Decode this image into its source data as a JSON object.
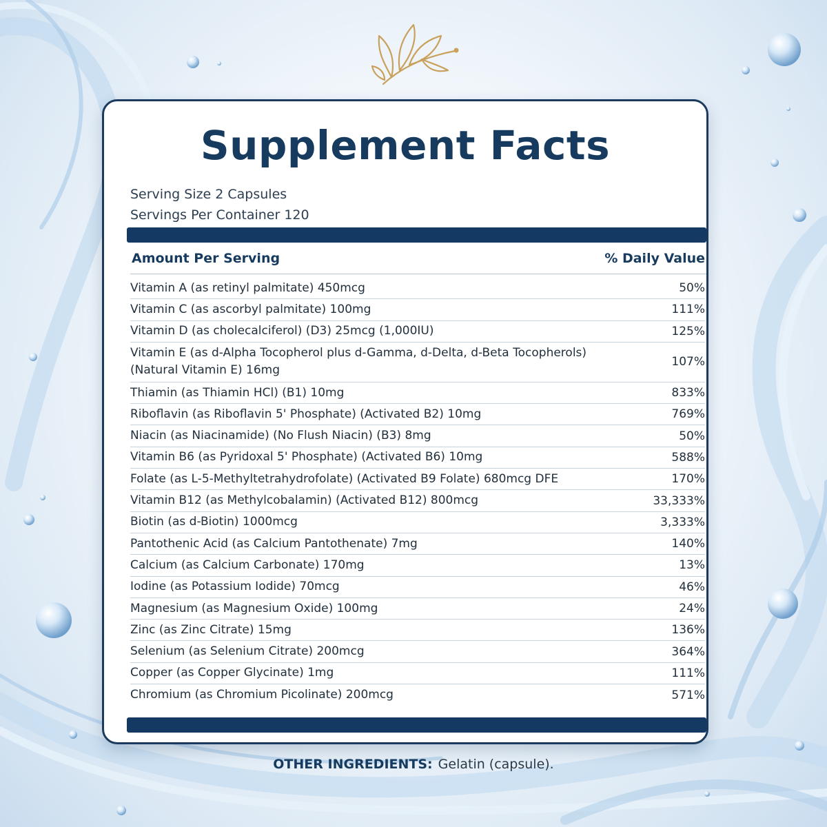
{
  "title": "Supplement Facts",
  "serving_size": "Serving Size 2 Capsules",
  "servings_per_container": "Servings Per Container 120",
  "header": {
    "amount_label": "Amount Per Serving",
    "dv_label": "% Daily Value"
  },
  "nutrients": [
    {
      "name": "Vitamin A (as retinyl palmitate) 450mcg",
      "dv": "50%"
    },
    {
      "name": "Vitamin C (as ascorbyl palmitate) 100mg",
      "dv": "111%"
    },
    {
      "name": "Vitamin D (as cholecalciferol) (D3) 25mcg (1,000IU)",
      "dv": "125%"
    },
    {
      "name": "Vitamin E (as d-Alpha Tocopherol plus d-Gamma, d-Delta, d-Beta Tocopherols) (Natural Vitamin E) 16mg",
      "dv": "107%"
    },
    {
      "name": "Thiamin (as Thiamin HCl) (B1) 10mg",
      "dv": "833%"
    },
    {
      "name": "Riboflavin (as Riboflavin 5' Phosphate) (Activated B2) 10mg",
      "dv": "769%"
    },
    {
      "name": "Niacin (as Niacinamide) (No Flush Niacin) (B3) 8mg",
      "dv": "50%"
    },
    {
      "name": "Vitamin B6 (as Pyridoxal 5' Phosphate) (Activated B6) 10mg",
      "dv": "588%"
    },
    {
      "name": "Folate (as L-5-Methyltetrahydrofolate) (Activated B9 Folate) 680mcg DFE",
      "dv": "170%"
    },
    {
      "name": "Vitamin B12 (as Methylcobalamin) (Activated B12) 800mcg",
      "dv": "33,333%"
    },
    {
      "name": "Biotin (as d-Biotin) 1000mcg",
      "dv": "3,333%"
    },
    {
      "name": "Pantothenic Acid (as Calcium Pantothenate) 7mg",
      "dv": "140%"
    },
    {
      "name": "Calcium (as Calcium Carbonate) 170mg",
      "dv": "13%"
    },
    {
      "name": "Iodine (as Potassium Iodide) 70mcg",
      "dv": "46%"
    },
    {
      "name": "Magnesium (as Magnesium Oxide) 100mg",
      "dv": "24%"
    },
    {
      "name": "Zinc (as Zinc Citrate) 15mg",
      "dv": "136%"
    },
    {
      "name": "Selenium (as Selenium Citrate) 200mcg",
      "dv": "364%"
    },
    {
      "name": "Copper (as Copper Glycinate) 1mg",
      "dv": "111%"
    },
    {
      "name": "Chromium (as Chromium Picolinate) 200mcg",
      "dv": "571%"
    }
  ],
  "other_ingredients": {
    "label": "OTHER INGREDIENTS:",
    "text": "Gelatin (capsule)."
  },
  "colors": {
    "navy": "#163b5e",
    "gold": "#c9a15c",
    "water": "#a9c9e8"
  },
  "icons": {
    "top_ornament": "gold-leaf-sprig-icon"
  }
}
